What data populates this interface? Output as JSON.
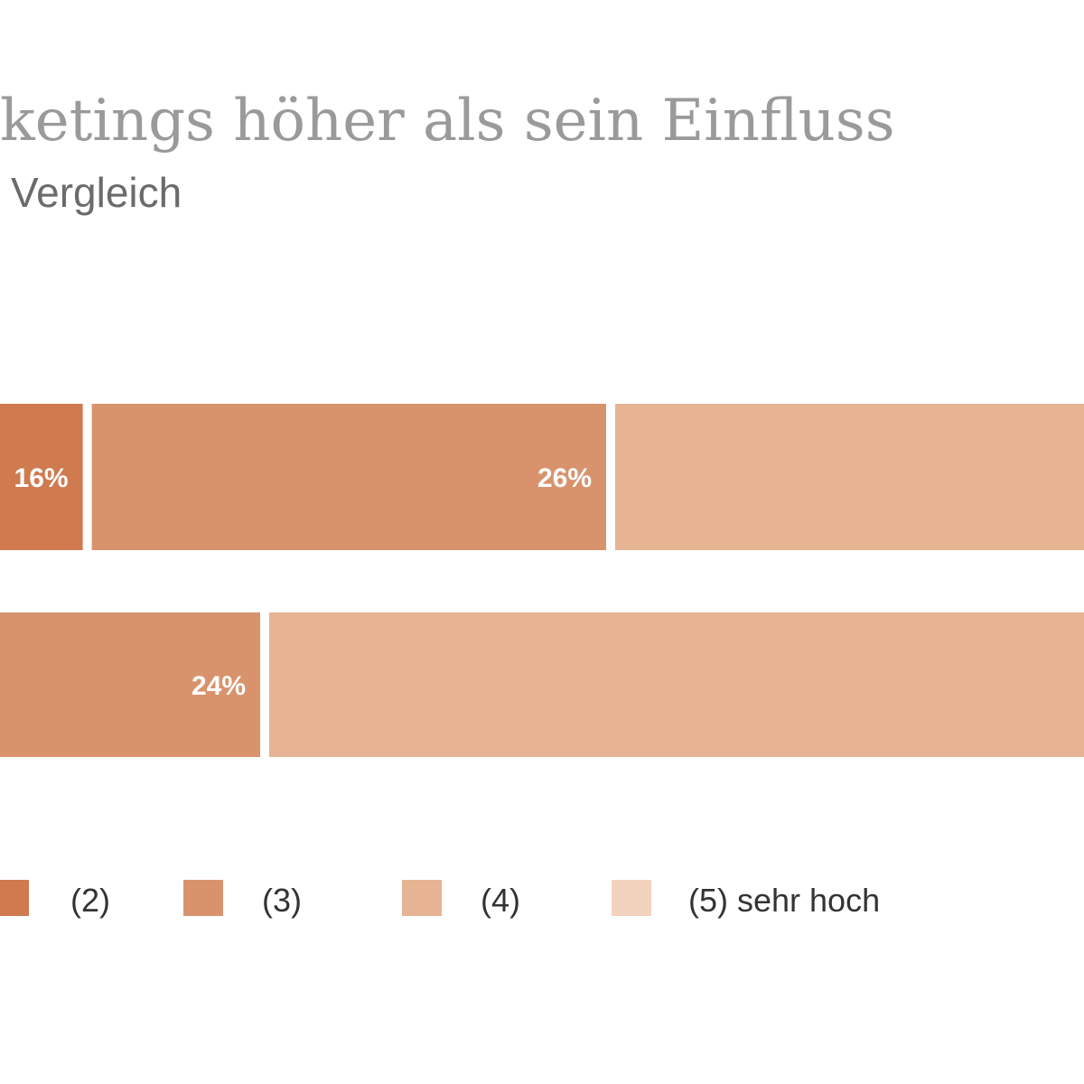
{
  "chart_data": {
    "type": "bar",
    "orientation": "horizontal",
    "stacked": true,
    "title": "keting s höher als sein Einfluss",
    "subtitle": "Vergleich",
    "categories": [
      "",
      ""
    ],
    "series": [
      {
        "name": "(2)",
        "color": "#cf7a4f",
        "values": [
          16,
          null
        ],
        "labels": [
          "16%",
          ""
        ]
      },
      {
        "name": "(3)",
        "color": "#d8936d",
        "values": [
          26,
          24
        ],
        "labels": [
          "26%",
          "24%"
        ]
      },
      {
        "name": "(4)",
        "color": "#e6b393",
        "values": [
          null,
          null
        ],
        "labels": [
          "",
          ""
        ]
      },
      {
        "name": "(5) sehr hoch",
        "color": "#f3d3bd",
        "values": [
          null,
          null
        ],
        "labels": [
          "",
          ""
        ]
      }
    ],
    "legend": {
      "placement": "bottom",
      "items": [
        {
          "label": "(2)",
          "color": "#cf7a4f"
        },
        {
          "label": "(3)",
          "color": "#d8936d"
        },
        {
          "label": "(4)",
          "color": "#e6b393"
        },
        {
          "label": "(5) sehr hoch",
          "color": "#f3d3bd"
        }
      ]
    },
    "grid": false
  }
}
